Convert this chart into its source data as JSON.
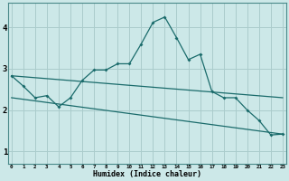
{
  "xlabel": "Humidex (Indice chaleur)",
  "background_color": "#cce8e8",
  "grid_color": "#aacccc",
  "line_color": "#1a6b6b",
  "x_ticks": [
    0,
    1,
    2,
    3,
    4,
    5,
    6,
    7,
    8,
    9,
    10,
    11,
    12,
    13,
    14,
    15,
    16,
    17,
    18,
    19,
    20,
    21,
    22,
    23
  ],
  "ylim": [
    0.7,
    4.6
  ],
  "xlim": [
    -0.3,
    23.3
  ],
  "series1_x": [
    0,
    1,
    2,
    3,
    4,
    5,
    6,
    7,
    8,
    9,
    10,
    11,
    12,
    13,
    14,
    15,
    16,
    17,
    18,
    19,
    20,
    21,
    22,
    23
  ],
  "series1_y": [
    2.83,
    2.58,
    2.3,
    2.35,
    2.08,
    2.3,
    2.72,
    2.97,
    2.97,
    3.12,
    3.12,
    3.6,
    4.12,
    4.25,
    3.75,
    3.22,
    3.35,
    2.45,
    2.3,
    2.3,
    2.0,
    1.75,
    1.4,
    1.42
  ],
  "trend1_x": [
    0,
    23
  ],
  "trend1_y": [
    2.83,
    2.3
  ],
  "trend2_x": [
    0,
    23
  ],
  "trend2_y": [
    2.3,
    1.42
  ],
  "yticks": [
    1,
    2,
    3,
    4
  ],
  "xlabel_fontsize": 6.0,
  "xtick_fontsize": 4.2,
  "ytick_fontsize": 6.5
}
